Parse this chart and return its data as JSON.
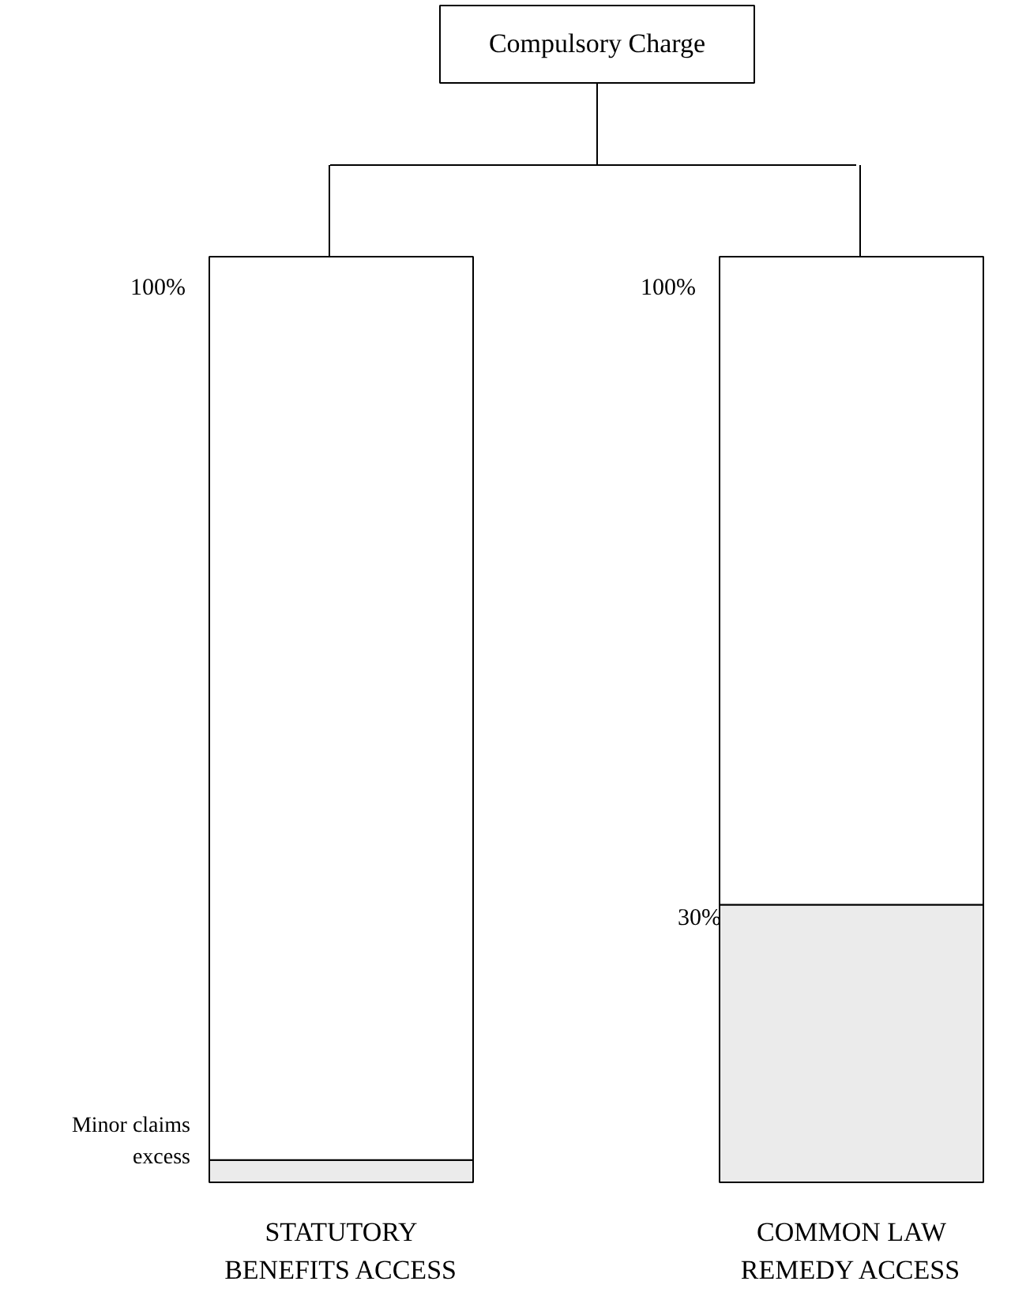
{
  "chart_data": {
    "type": "bar",
    "title": "Compulsory Charge",
    "categories": [
      "STATUTORY BENEFITS ACCESS",
      "COMMON LAW REMEDY ACCESS"
    ],
    "stacked": true,
    "ylim": [
      0,
      100
    ],
    "series": [
      {
        "color": "#ebebeb",
        "values": [
          2.4,
          30
        ],
        "value_labels": [
          null,
          "30%"
        ]
      },
      {
        "color": "#ffffff",
        "values": [
          97.6,
          70
        ]
      }
    ],
    "totals": [
      "100%",
      "100%"
    ],
    "annotations": [
      "Minor claims excess"
    ]
  }
}
